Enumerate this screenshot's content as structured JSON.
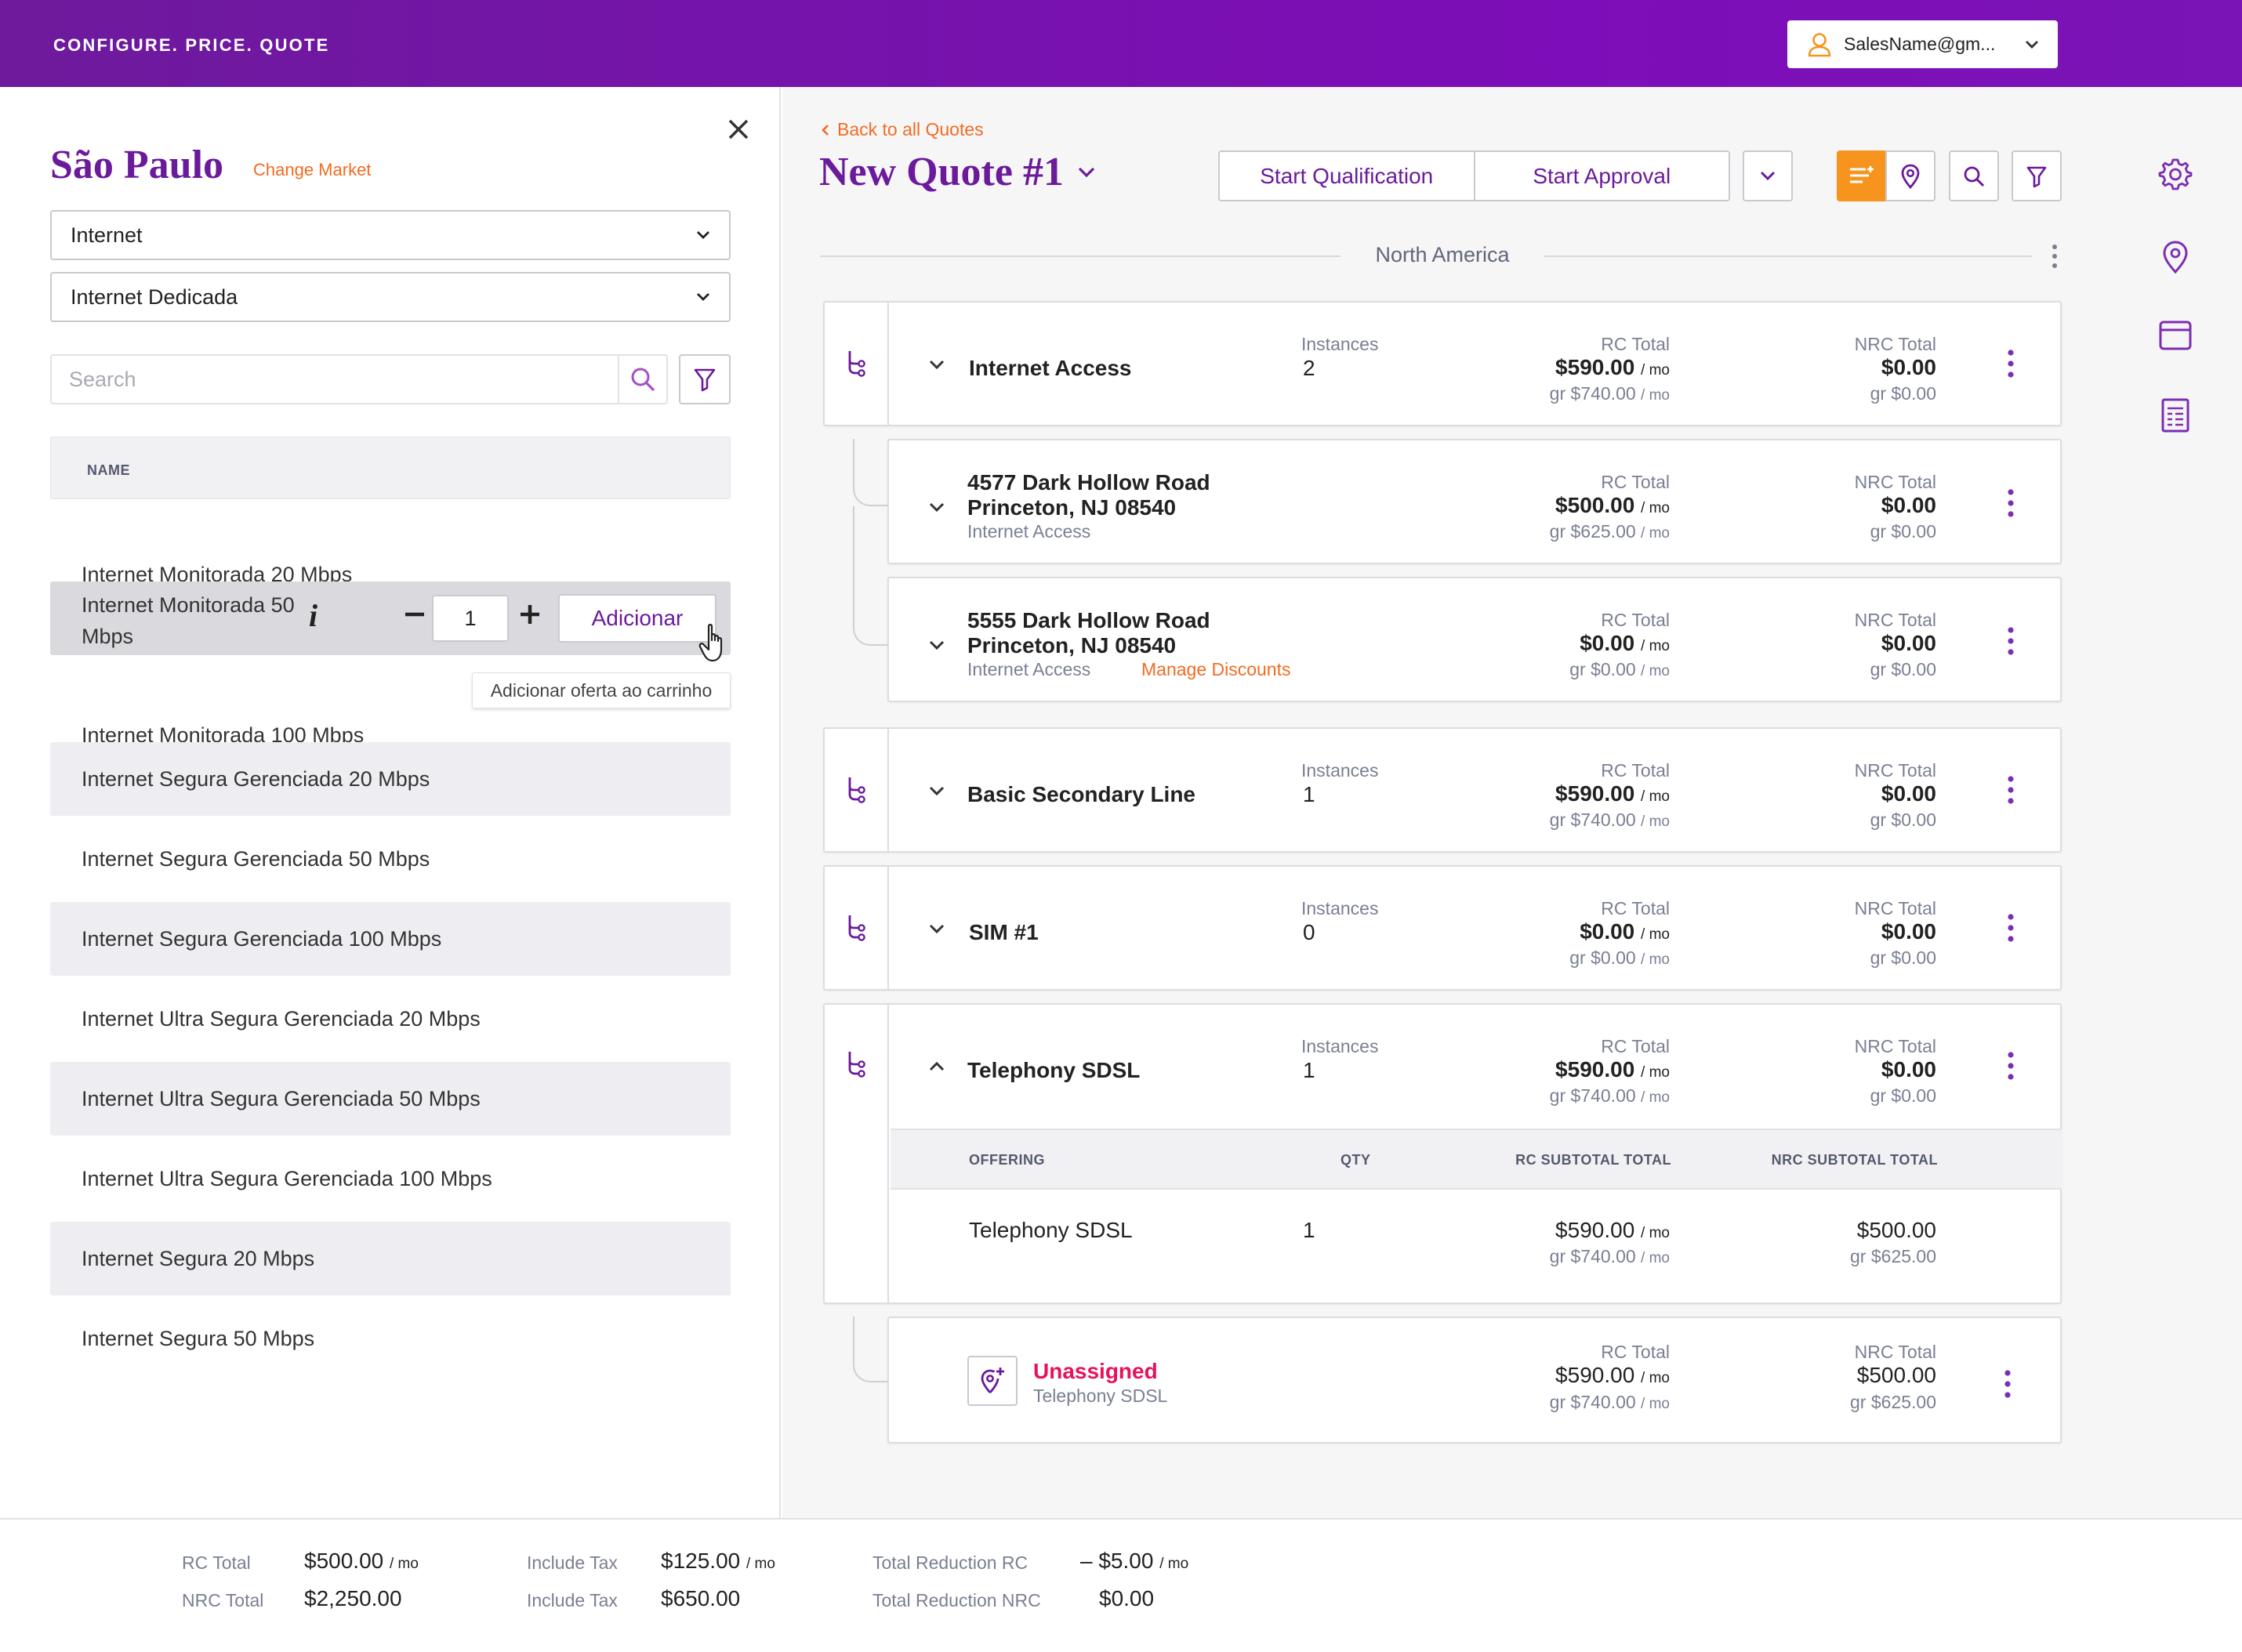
{
  "header": {
    "brand": "CONFIGURE. PRICE. QUOTE",
    "user": "SalesName@gm...",
    "user_icon": "user-icon",
    "colors": {
      "brand_purple": "#7a14b6",
      "accent_orange": "#f7941d",
      "link_orange": "#f36b21",
      "unassigned_pink": "#e8115b"
    }
  },
  "left": {
    "market": "São Paulo",
    "change_market": "Change Market",
    "select1": "Internet",
    "select2": "Internet Dedicada",
    "search_placeholder": "Search",
    "name_header": "NAME",
    "products": [
      "Internet Monitorada 20 Mbps",
      "Internet Monitorada 50 Mbps",
      "Internet Monitorada 100 Mbps",
      "Internet Segura Gerenciada 20 Mbps",
      "Internet Segura Gerenciada 50 Mbps",
      "Internet Segura Gerenciada 100 Mbps",
      "Internet Ultra Segura Gerenciada 20 Mbps",
      "Internet Ultra Segura Gerenciada 50 Mbps",
      "Internet Ultra Segura Gerenciada 100 Mbps",
      "Internet Segura 20 Mbps",
      "Internet Segura 50 Mbps"
    ],
    "hover": {
      "qty": "1",
      "add_label": "Adicionar",
      "info_glyph": "i",
      "tooltip": "Adicionar oferta ao carrinho"
    }
  },
  "quote": {
    "back": "Back to all Quotes",
    "title": "New Quote #1",
    "start_qualification": "Start Qualification",
    "start_approval": "Start Approval",
    "region": "North America"
  },
  "labels": {
    "instances": "Instances",
    "rc_total": "RC Total",
    "nrc_total": "NRC Total",
    "mo": "/ mo",
    "offering": "OFFERING",
    "qty": "QTY",
    "rc_subtotal": "RC SUBTOTAL TOTAL",
    "nrc_subtotal": "NRC SUBTOTAL TOTAL",
    "manage_discounts": "Manage Discounts"
  },
  "groups": [
    {
      "name": "Internet Access",
      "instances": "2",
      "rc": "$590.00",
      "rc_gr": "gr $740.00",
      "nrc": "$0.00",
      "nrc_gr": "gr $0.00"
    },
    {
      "name": "Basic Secondary Line",
      "instances": "1",
      "rc": "$590.00",
      "rc_gr": "gr $740.00",
      "nrc": "$0.00",
      "nrc_gr": "gr $0.00"
    },
    {
      "name": "SIM #1",
      "instances": "0",
      "rc": "$0.00",
      "rc_gr": "gr $0.00",
      "nrc": "$0.00",
      "nrc_gr": "gr $0.00"
    },
    {
      "name": "Telephony SDSL",
      "instances": "1",
      "rc": "$590.00",
      "rc_gr": "gr $740.00",
      "nrc": "$0.00",
      "nrc_gr": "gr $0.00"
    }
  ],
  "sites": [
    {
      "line1": "4577 Dark Hollow Road",
      "line2": "Princeton, NJ 08540",
      "product": "Internet Access",
      "rc": "$500.00",
      "rc_gr": "gr $625.00",
      "nrc": "$0.00",
      "nrc_gr": "gr $0.00"
    },
    {
      "line1": "5555 Dark Hollow Road",
      "line2": "Princeton, NJ 08540",
      "product": "Internet Access",
      "rc": "$0.00",
      "rc_gr": "gr $0.00",
      "nrc": "$0.00",
      "nrc_gr": "gr $0.00"
    }
  ],
  "offering_row": {
    "name": "Telephony SDSL",
    "qty": "1",
    "rc": "$590.00",
    "rc_gr": "gr $740.00",
    "nrc": "$500.00",
    "nrc_gr": "gr $625.00"
  },
  "unassigned": {
    "title": "Unassigned",
    "product": "Telephony SDSL",
    "rc": "$590.00",
    "rc_gr": "gr $740.00",
    "nrc": "$500.00",
    "nrc_gr": "gr $625.00"
  },
  "sidebar_icons": [
    "gear-icon",
    "location-pin-icon",
    "calendar-icon",
    "document-icon"
  ],
  "footer": {
    "rc_total_label": "RC Total",
    "rc_total": "$500.00",
    "nrc_total_label": "NRC Total",
    "nrc_total": "$2,250.00",
    "tax_label": "Include Tax",
    "tax_rc": "$125.00",
    "tax_label2": "Include Tax",
    "tax_nrc": "$650.00",
    "red_rc_label": "Total Reduction RC",
    "red_rc": "– $5.00",
    "red_nrc_label": "Total Reduction NRC",
    "red_nrc": "$0.00"
  }
}
